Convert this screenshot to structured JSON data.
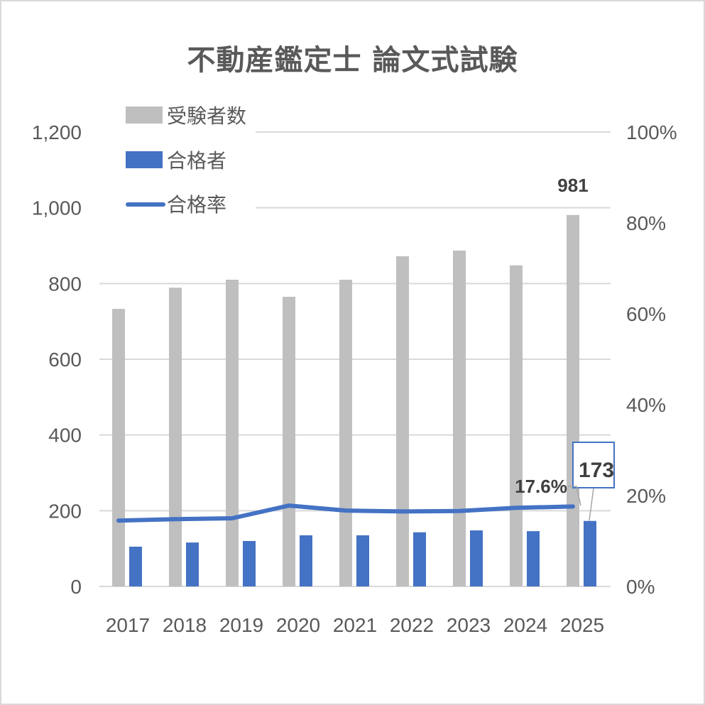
{
  "chart_data": {
    "type": "bar",
    "title": "不動産鑑定士 論文式試験",
    "categories": [
      "2017",
      "2018",
      "2019",
      "2020",
      "2021",
      "2022",
      "2023",
      "2024",
      "2025"
    ],
    "series": [
      {
        "name": "受験者数",
        "type": "bar",
        "axis": "left",
        "color": "#bfbfbf",
        "values": [
          733,
          789,
          810,
          765,
          810,
          872,
          887,
          848,
          981
        ]
      },
      {
        "name": "合格者",
        "type": "bar",
        "axis": "left",
        "color": "#4472c4",
        "values": [
          105,
          116,
          120,
          135,
          135,
          143,
          148,
          146,
          173
        ]
      },
      {
        "name": "合格率",
        "type": "line",
        "axis": "right",
        "color": "#4472c4",
        "unit": "%",
        "values": [
          14.5,
          14.8,
          15.0,
          17.8,
          16.7,
          16.5,
          16.6,
          17.3,
          17.6
        ]
      }
    ],
    "left_axis": {
      "ylim": [
        0,
        1200
      ],
      "ticks": [
        "0",
        "200",
        "400",
        "600",
        "800",
        "1,000",
        "1,200"
      ]
    },
    "right_axis": {
      "ylim": [
        0,
        100
      ],
      "ticks": [
        "0%",
        "20%",
        "40%",
        "60%",
        "80%",
        "100%"
      ]
    },
    "xlabel": "",
    "ylabel": "",
    "grid": true,
    "legend_position": "top-left",
    "annotations": [
      {
        "series": "受験者数",
        "category": "2025",
        "label": "981"
      },
      {
        "series": "合格者",
        "category": "2025",
        "label": "173",
        "boxed": true
      },
      {
        "series": "合格率",
        "category": "2025",
        "label": "17.6%"
      }
    ]
  },
  "title": "不動産鑑定士 論文式試験",
  "legend": [
    {
      "label": "受験者数"
    },
    {
      "label": "合格者"
    },
    {
      "label": "合格率"
    }
  ],
  "labels": {
    "applicants_2025": "981",
    "passers_2025": "173",
    "rate_2025": "17.6%"
  },
  "colors": {
    "applicants": "#bfbfbf",
    "passers": "#4472c4",
    "rate": "#4472c4",
    "grid": "#d9d9d9",
    "text": "#595959"
  }
}
